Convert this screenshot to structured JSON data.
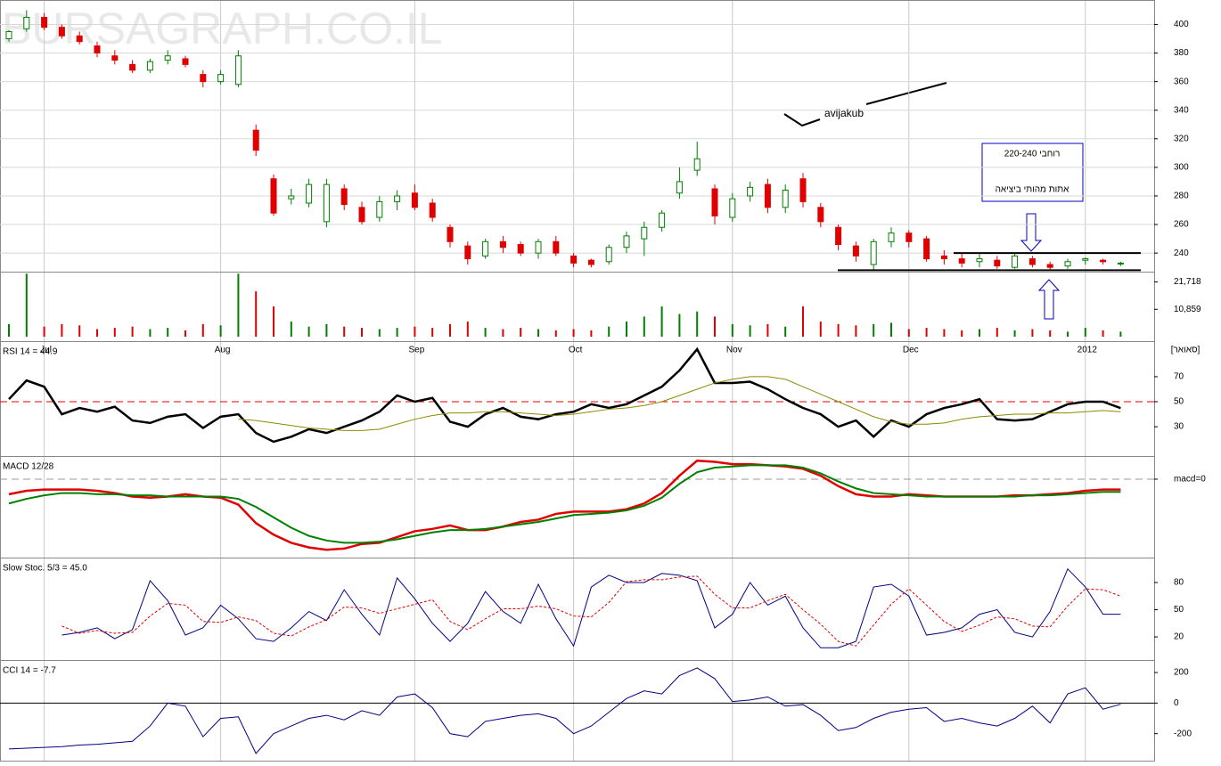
{
  "watermark": "BURSAGRAPH.CO.IL",
  "chart_data": [
    {
      "type": "candlestick",
      "categories": [
        null,
        null,
        "Jul",
        null,
        null,
        null,
        null,
        null,
        null,
        null,
        null,
        null,
        "Aug",
        null,
        null,
        null,
        null,
        null,
        null,
        null,
        null,
        null,
        null,
        "Sep",
        null,
        null,
        null,
        null,
        null,
        null,
        null,
        null,
        "Oct",
        null,
        null,
        null,
        null,
        null,
        null,
        null,
        null,
        "Nov",
        null,
        null,
        null,
        null,
        null,
        null,
        null,
        null,
        null,
        "Dec",
        null,
        null,
        null,
        null,
        null,
        null,
        null,
        null,
        null,
        "2012",
        null,
        null
      ],
      "open": [
        390,
        397,
        405,
        398,
        392,
        385,
        378,
        372,
        368,
        375,
        376,
        365,
        360,
        358,
        326,
        292,
        278,
        275,
        262,
        285,
        272,
        265,
        276,
        282,
        275,
        258,
        245,
        238,
        248,
        246,
        240,
        248,
        238,
        235,
        234,
        244,
        250,
        258,
        282,
        298,
        285,
        265,
        280,
        288,
        272,
        292,
        272,
        258,
        245,
        232,
        248,
        254,
        250,
        238,
        236,
        234,
        235,
        230,
        236,
        232,
        231,
        235,
        235,
        233
      ],
      "high": [
        396,
        410,
        408,
        400,
        395,
        388,
        382,
        375,
        376,
        382,
        378,
        368,
        368,
        382,
        330,
        295,
        285,
        292,
        292,
        288,
        276,
        280,
        284,
        288,
        278,
        260,
        248,
        250,
        252,
        248,
        250,
        252,
        240,
        236,
        246,
        255,
        262,
        270,
        300,
        318,
        288,
        282,
        290,
        292,
        288,
        296,
        275,
        260,
        248,
        250,
        258,
        256,
        252,
        242,
        240,
        240,
        238,
        240,
        238,
        234,
        236,
        237,
        236,
        234
      ],
      "low": [
        388,
        395,
        396,
        390,
        386,
        377,
        372,
        366,
        366,
        372,
        370,
        356,
        358,
        356,
        308,
        266,
        274,
        272,
        258,
        270,
        260,
        262,
        270,
        270,
        262,
        244,
        232,
        236,
        240,
        238,
        236,
        238,
        230,
        230,
        232,
        240,
        238,
        255,
        278,
        294,
        260,
        262,
        276,
        268,
        268,
        272,
        258,
        242,
        234,
        228,
        244,
        244,
        234,
        232,
        230,
        230,
        229,
        229,
        230,
        228,
        229,
        232,
        232,
        231
      ],
      "close": [
        395,
        405,
        398,
        392,
        388,
        380,
        375,
        368,
        374,
        378,
        372,
        360,
        365,
        378,
        312,
        268,
        280,
        288,
        288,
        274,
        262,
        276,
        280,
        272,
        265,
        248,
        236,
        248,
        244,
        240,
        248,
        240,
        233,
        232,
        244,
        252,
        258,
        268,
        290,
        306,
        266,
        278,
        286,
        272,
        284,
        276,
        262,
        246,
        238,
        248,
        254,
        248,
        236,
        236,
        233,
        236,
        231,
        238,
        232,
        230,
        234,
        236,
        234,
        233
      ],
      "up_color": "#008000",
      "down_color": "#e00000",
      "ylim": [
        227,
        414
      ],
      "yticks": [
        240,
        260,
        280,
        300,
        320,
        340,
        360,
        380,
        400
      ],
      "grid": true,
      "support_levels": [
        228,
        240
      ],
      "annotations": [
        "avijakub",
        "רוחבי 220-240",
        "אתות מהותי ביציאה"
      ],
      "x_note": "[סאואר]"
    },
    {
      "type": "bar",
      "values": [
        5000,
        25000,
        4000,
        5000,
        4500,
        3000,
        3500,
        4000,
        3000,
        3500,
        2500,
        5000,
        4500,
        25000,
        18000,
        12000,
        6000,
        4000,
        5000,
        4000,
        3500,
        3000,
        3500,
        4000,
        3500,
        5000,
        6000,
        3500,
        3000,
        3500,
        3000,
        2500,
        3000,
        2500,
        4000,
        6000,
        8000,
        12000,
        9000,
        10000,
        8000,
        5000,
        4500,
        5000,
        4000,
        12000,
        6000,
        5000,
        4500,
        5000,
        5500,
        3000,
        3500,
        3000,
        2500,
        3000,
        3500,
        2500,
        3000,
        2500,
        2000,
        3500,
        2500,
        2000
      ],
      "ylim": [
        0,
        25800
      ],
      "yticks": [
        {
          "value": 10859,
          "label": "10,859"
        },
        {
          "value": 21718,
          "label": "21,718"
        }
      ]
    },
    {
      "type": "line",
      "title": "RSI 14 = 44.9",
      "series": [
        {
          "color": "#000000",
          "values": [
            52,
            67,
            62,
            40,
            45,
            42,
            46,
            35,
            33,
            38,
            40,
            29,
            38,
            40,
            25,
            18,
            22,
            28,
            25,
            30,
            35,
            42,
            55,
            50,
            53,
            34,
            30,
            40,
            45,
            38,
            36,
            40,
            42,
            48,
            45,
            48,
            55,
            62,
            75,
            92,
            65,
            65,
            66,
            60,
            52,
            45,
            40,
            30,
            35,
            22,
            35,
            30,
            40,
            45,
            48,
            52,
            36,
            35,
            36,
            42,
            48,
            50,
            50,
            44.9
          ]
        },
        {
          "color": "#8b8b00",
          "values": [
            null,
            null,
            null,
            null,
            null,
            null,
            null,
            null,
            null,
            null,
            null,
            null,
            null,
            36,
            35,
            33,
            31,
            29,
            28,
            27,
            27,
            28,
            32,
            36,
            39,
            41,
            41,
            42,
            42,
            41,
            40,
            39,
            40,
            42,
            44,
            45,
            47,
            50,
            55,
            60,
            65,
            68,
            70,
            70,
            68,
            62,
            56,
            50,
            44,
            38,
            34,
            32,
            32,
            33,
            36,
            38,
            39,
            40,
            40,
            41,
            41,
            42,
            43,
            42
          ]
        }
      ],
      "ylim": [
        8,
        97
      ],
      "yticks": [
        30,
        50,
        70
      ],
      "ref_line": 50
    },
    {
      "type": "line",
      "title": "MACD 12/28",
      "series": [
        {
          "color": "#e00000",
          "values": [
            -1.3,
            -1,
            -0.9,
            -0.9,
            -0.9,
            -1.0,
            -1.2,
            -1.5,
            -1.6,
            -1.5,
            -1.3,
            -1.5,
            -1.6,
            -2.2,
            -3.8,
            -4.8,
            -5.5,
            -5.9,
            -6.1,
            -6.0,
            -5.6,
            -5.5,
            -5.0,
            -4.5,
            -4.3,
            -4.0,
            -4.4,
            -4.4,
            -4.1,
            -3.7,
            -3.5,
            -3.0,
            -2.8,
            -2.8,
            -2.8,
            -2.6,
            -2.1,
            -1.2,
            0.3,
            1.6,
            1.5,
            1.3,
            1.3,
            1.2,
            1.1,
            0.9,
            0.3,
            -0.6,
            -1.3,
            -1.5,
            -1.5,
            -1.3,
            -1.4,
            -1.5,
            -1.5,
            -1.5,
            -1.5,
            -1.4,
            -1.4,
            -1.3,
            -1.2,
            -1.0,
            -0.9,
            -0.9
          ]
        },
        {
          "color": "#008000",
          "values": [
            -2.1,
            -1.7,
            -1.4,
            -1.2,
            -1.2,
            -1.3,
            -1.3,
            -1.4,
            -1.4,
            -1.5,
            -1.5,
            -1.5,
            -1.5,
            -1.7,
            -2.4,
            -3.3,
            -4.2,
            -4.9,
            -5.3,
            -5.5,
            -5.5,
            -5.4,
            -5.2,
            -4.9,
            -4.6,
            -4.4,
            -4.4,
            -4.3,
            -4.1,
            -3.9,
            -3.7,
            -3.4,
            -3.1,
            -3.0,
            -2.9,
            -2.7,
            -2.3,
            -1.6,
            -0.4,
            0.6,
            1.0,
            1.1,
            1.2,
            1.2,
            1.2,
            1.0,
            0.5,
            -0.2,
            -0.8,
            -1.2,
            -1.3,
            -1.4,
            -1.5,
            -1.5,
            -1.5,
            -1.5,
            -1.5,
            -1.5,
            -1.4,
            -1.4,
            -1.3,
            -1.2,
            -1.1,
            -1.1
          ]
        }
      ],
      "ylim": [
        -6.7,
        2
      ],
      "yticks": [
        {
          "value": 0,
          "label": "macd=0"
        }
      ],
      "ref_line": 0
    },
    {
      "type": "line",
      "title": "Slow Stoc. 5/3 = 45.0",
      "series": [
        {
          "color": "#000080",
          "values": [
            null,
            null,
            null,
            22,
            25,
            30,
            18,
            28,
            82,
            60,
            22,
            30,
            55,
            40,
            18,
            15,
            30,
            48,
            38,
            72,
            45,
            22,
            85,
            62,
            35,
            15,
            35,
            70,
            48,
            35,
            78,
            40,
            10,
            75,
            88,
            80,
            80,
            90,
            88,
            82,
            30,
            45,
            80,
            55,
            65,
            30,
            8,
            8,
            15,
            75,
            78,
            65,
            22,
            25,
            30,
            45,
            50,
            25,
            20,
            48,
            95,
            75,
            45,
            45.0
          ]
        },
        {
          "color": "#e00000",
          "style": "dashed",
          "values": [
            null,
            null,
            null,
            32,
            24,
            27,
            24,
            25,
            43,
            57,
            55,
            37,
            36,
            42,
            38,
            24,
            21,
            31,
            39,
            53,
            52,
            46,
            51,
            56,
            61,
            37,
            28,
            40,
            51,
            51,
            54,
            51,
            43,
            42,
            58,
            81,
            83,
            83,
            86,
            87,
            67,
            52,
            52,
            60,
            67,
            50,
            34,
            15,
            10,
            33,
            56,
            73,
            55,
            37,
            26,
            33,
            42,
            40,
            32,
            31,
            54,
            73,
            72,
            65
          ]
        }
      ],
      "ylim": [
        -4.5,
        106.5
      ],
      "yticks": [
        20,
        50,
        80
      ]
    },
    {
      "type": "line",
      "title": "CCI 14 = -7.7",
      "series": [
        {
          "color": "#000080",
          "values": [
            -300,
            -295,
            -290,
            -285,
            -275,
            -270,
            -260,
            -250,
            -150,
            0,
            -20,
            -220,
            -100,
            -90,
            -330,
            -200,
            -150,
            -100,
            -80,
            -110,
            -50,
            -80,
            40,
            60,
            -30,
            -200,
            -220,
            -120,
            -100,
            -80,
            -70,
            -100,
            -200,
            -150,
            -60,
            30,
            80,
            60,
            180,
            230,
            160,
            10,
            20,
            40,
            -20,
            -10,
            -80,
            -180,
            -160,
            -100,
            -60,
            -40,
            -30,
            -120,
            -100,
            -130,
            -150,
            -100,
            -20,
            -130,
            60,
            100,
            -40,
            -7.7
          ]
        }
      ],
      "ylim": [
        -371,
        276
      ],
      "yticks": [
        -200,
        0,
        200
      ],
      "ref_line": 0
    }
  ]
}
